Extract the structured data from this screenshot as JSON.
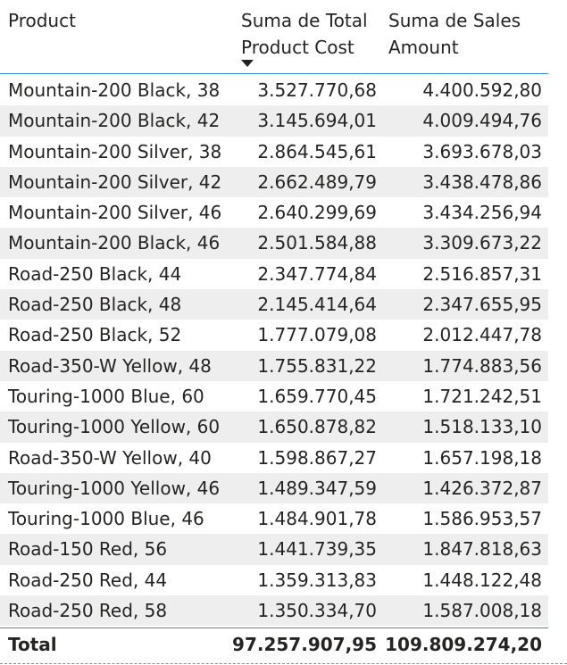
{
  "columns": {
    "product": "Product",
    "cost": "Suma de Total Product Cost",
    "sales": "Suma de Sales Amount"
  },
  "sort": {
    "column": "cost",
    "direction": "descending",
    "icon": "sort-descending-icon"
  },
  "rows": [
    {
      "product": "Mountain-200 Black, 38",
      "cost": "3.527.770,68",
      "sales": "4.400.592,80"
    },
    {
      "product": "Mountain-200 Black, 42",
      "cost": "3.145.694,01",
      "sales": "4.009.494,76"
    },
    {
      "product": "Mountain-200 Silver, 38",
      "cost": "2.864.545,61",
      "sales": "3.693.678,03"
    },
    {
      "product": "Mountain-200 Silver, 42",
      "cost": "2.662.489,79",
      "sales": "3.438.478,86"
    },
    {
      "product": "Mountain-200 Silver, 46",
      "cost": "2.640.299,69",
      "sales": "3.434.256,94"
    },
    {
      "product": "Mountain-200 Black, 46",
      "cost": "2.501.584,88",
      "sales": "3.309.673,22"
    },
    {
      "product": "Road-250 Black, 44",
      "cost": "2.347.774,84",
      "sales": "2.516.857,31"
    },
    {
      "product": "Road-250 Black, 48",
      "cost": "2.145.414,64",
      "sales": "2.347.655,95"
    },
    {
      "product": "Road-250 Black, 52",
      "cost": "1.777.079,08",
      "sales": "2.012.447,78"
    },
    {
      "product": "Road-350-W Yellow, 48",
      "cost": "1.755.831,22",
      "sales": "1.774.883,56"
    },
    {
      "product": "Touring-1000 Blue, 60",
      "cost": "1.659.770,45",
      "sales": "1.721.242,51"
    },
    {
      "product": "Touring-1000 Yellow, 60",
      "cost": "1.650.878,82",
      "sales": "1.518.133,10"
    },
    {
      "product": "Road-350-W Yellow, 40",
      "cost": "1.598.867,27",
      "sales": "1.657.198,18"
    },
    {
      "product": "Touring-1000 Yellow, 46",
      "cost": "1.489.347,59",
      "sales": "1.426.372,87"
    },
    {
      "product": "Touring-1000 Blue, 46",
      "cost": "1.484.901,78",
      "sales": "1.586.953,57"
    },
    {
      "product": "Road-150 Red, 56",
      "cost": "1.441.739,35",
      "sales": "1.847.818,63"
    },
    {
      "product": "Road-250 Red, 44",
      "cost": "1.359.313,83",
      "sales": "1.448.122,48"
    },
    {
      "product": "Road-250 Red, 58",
      "cost": "1.350.334,70",
      "sales": "1.587.008,18"
    }
  ],
  "total": {
    "label": "Total",
    "cost": "97.257.907,95",
    "sales": "109.809.274,20"
  },
  "colors": {
    "accent_line": "#3d8cc9",
    "alt_row": "#eeeeee",
    "text": "#252423"
  }
}
